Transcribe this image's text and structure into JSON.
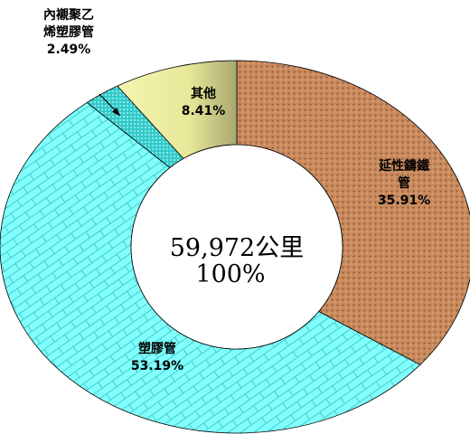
{
  "chart_data": {
    "type": "donut",
    "categories": [
      "延性鑄鐵管",
      "塑膠管",
      "內襯聚乙烯塑膠管",
      "其他"
    ],
    "values": [
      35.91,
      53.19,
      2.49,
      8.41
    ],
    "value_labels": [
      "35.91%",
      "53.19%",
      "2.49%",
      "8.41%"
    ],
    "colors": [
      "#c98a5e",
      "#80ffff",
      "#33c9c9",
      "#eeeea0"
    ],
    "center_text": [
      "59,972公里",
      "100%"
    ]
  }
}
